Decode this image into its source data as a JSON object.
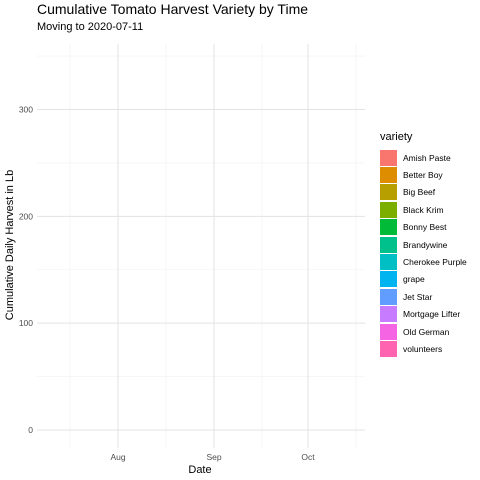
{
  "chart_data": {
    "type": "area",
    "title": "Cumulative Tomato Harvest Variety by Time",
    "subtitle": "Moving to 2020-07-11",
    "xlabel": "Date",
    "ylabel": "Cumulative Daily Harvest in Lb",
    "x_ticks": [
      "Aug",
      "Sep",
      "Oct"
    ],
    "y_ticks": [
      0,
      100,
      200,
      300
    ],
    "ylim": [
      -12,
      355
    ],
    "grid": true,
    "legend": {
      "title": "variety",
      "position": "right",
      "entries": [
        {
          "name": "Amish Paste",
          "color": "#F8766D"
        },
        {
          "name": "Better Boy",
          "color": "#DE8C00"
        },
        {
          "name": "Big Beef",
          "color": "#B79F00"
        },
        {
          "name": "Black Krim",
          "color": "#7CAE00"
        },
        {
          "name": "Bonny Best",
          "color": "#00BA38"
        },
        {
          "name": "Brandywine",
          "color": "#00C08B"
        },
        {
          "name": "Cherokee Purple",
          "color": "#00BFC4"
        },
        {
          "name": "grape",
          "color": "#00B4F0"
        },
        {
          "name": "Jet Star",
          "color": "#619CFF"
        },
        {
          "name": "Mortgage Lifter",
          "color": "#C77CFF"
        },
        {
          "name": "Old German",
          "color": "#F564E3"
        },
        {
          "name": "volunteers",
          "color": "#FF64B0"
        }
      ]
    },
    "series": []
  }
}
